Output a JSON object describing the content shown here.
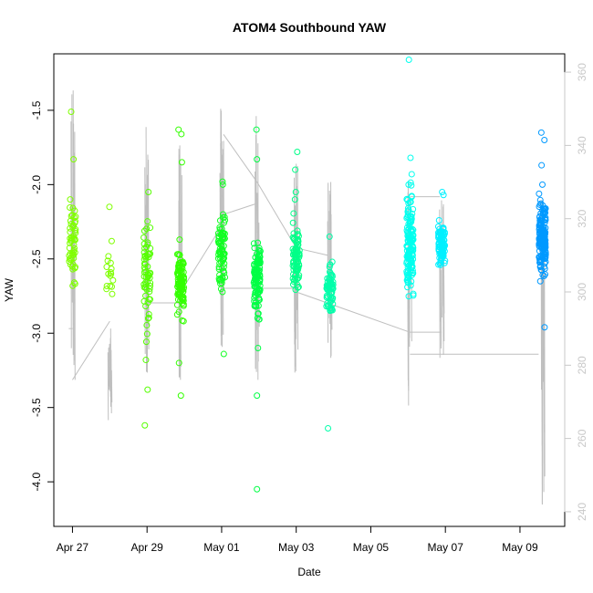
{
  "chart_data": {
    "type": "scatter",
    "title": "ATOM4 Southbound YAW",
    "xlabel": "Date",
    "ylabel": "YAW",
    "x_ticks": [
      "Apr 27",
      "Apr 29",
      "May 01",
      "May 03",
      "May 05",
      "May 07",
      "May 09"
    ],
    "y_ticks": [
      "-1.5",
      "-2.0",
      "-2.5",
      "-3.0",
      "-3.5",
      "-4.0"
    ],
    "y2_ticks": [
      "240",
      "260",
      "280",
      "300",
      "320",
      "340",
      "360"
    ],
    "xlim_days": [
      26.5,
      40.2
    ],
    "ylim": [
      -4.3,
      -1.12
    ],
    "y2lim": [
      236,
      365
    ],
    "grid": false,
    "series": [
      {
        "style": "points",
        "color_note": "green→cyan→blue gradient by date",
        "clusters": [
          {
            "day": 27.0,
            "color": "#7fff00",
            "center": -2.4,
            "spread": 0.18,
            "n": 55,
            "extra": [
              -1.51,
              -1.83,
              -2.1
            ]
          },
          {
            "day": 28.0,
            "color": "#7fff00",
            "center": -2.6,
            "spread": 0.1,
            "n": 15,
            "extra": [
              -2.15,
              -2.38
            ]
          },
          {
            "day": 29.0,
            "color": "#55ff00",
            "center": -2.6,
            "spread": 0.25,
            "n": 60,
            "extra": [
              -2.05,
              -3.38,
              -3.62,
              -3.18
            ]
          },
          {
            "day": 29.9,
            "color": "#33ff00",
            "center": -2.65,
            "spread": 0.15,
            "n": 110,
            "extra": [
              -1.63,
              -1.66,
              -1.85,
              -3.42,
              -3.2
            ]
          },
          {
            "day": 31.0,
            "color": "#11ff22",
            "center": -2.45,
            "spread": 0.18,
            "n": 80,
            "extra": [
              -1.98,
              -2.0,
              -3.14
            ]
          },
          {
            "day": 31.95,
            "color": "#00ff44",
            "center": -2.65,
            "spread": 0.18,
            "n": 110,
            "extra": [
              -1.63,
              -1.83,
              -3.1,
              -3.42,
              -4.05
            ]
          },
          {
            "day": 33.0,
            "color": "#00ff88",
            "center": -2.5,
            "spread": 0.15,
            "n": 80,
            "extra": [
              -1.78,
              -1.9,
              -2.05,
              -2.1
            ]
          },
          {
            "day": 33.9,
            "color": "#00ffaa",
            "center": -2.7,
            "spread": 0.12,
            "n": 70,
            "extra": [
              -2.35,
              -3.64
            ]
          },
          {
            "day": 36.05,
            "color": "#00ffee",
            "center": -2.4,
            "spread": 0.2,
            "n": 150,
            "extra": [
              -1.16,
              -1.82,
              -2.0,
              -1.93
            ]
          },
          {
            "day": 36.9,
            "color": "#00f0ff",
            "center": -2.4,
            "spread": 0.1,
            "n": 90,
            "extra": [
              -2.05,
              -2.07
            ]
          },
          {
            "day": 39.6,
            "color": "#0099ff",
            "center": -2.35,
            "spread": 0.18,
            "n": 170,
            "extra": [
              -1.65,
              -1.7,
              -1.87,
              -2.0,
              -2.65,
              -2.96
            ]
          }
        ]
      },
      {
        "style": "line",
        "axis": "right",
        "color": "#bfbfbf",
        "spikes": [
          {
            "day": 27.0,
            "low": 276,
            "high": 355
          },
          {
            "day": 28.0,
            "low": 265,
            "high": 290
          },
          {
            "day": 29.0,
            "low": 278,
            "high": 345
          },
          {
            "day": 29.9,
            "low": 276,
            "high": 340
          },
          {
            "day": 31.0,
            "low": 285,
            "high": 350
          },
          {
            "day": 31.95,
            "low": 276,
            "high": 348
          },
          {
            "day": 33.0,
            "low": 278,
            "high": 335
          },
          {
            "day": 33.9,
            "low": 282,
            "high": 330
          },
          {
            "day": 36.05,
            "low": 269,
            "high": 330
          },
          {
            "day": 36.9,
            "low": 282,
            "high": 325
          },
          {
            "day": 39.6,
            "low": 242,
            "high": 325
          }
        ],
        "connectors": [
          [
            26.9,
            290,
            27.0,
            290
          ],
          [
            27.0,
            276,
            28.0,
            292
          ],
          [
            29.0,
            297,
            29.9,
            297
          ],
          [
            29.9,
            300,
            31.0,
            318
          ],
          [
            31.0,
            321,
            31.9,
            324
          ],
          [
            31.05,
            343,
            31.95,
            330
          ],
          [
            31.95,
            330,
            33.0,
            312
          ],
          [
            33.0,
            312,
            33.85,
            310
          ],
          [
            31.0,
            301,
            33.0,
            301
          ],
          [
            33.0,
            300,
            36.05,
            289
          ],
          [
            36.05,
            326,
            36.85,
            326
          ],
          [
            36.9,
            289,
            36.05,
            289
          ],
          [
            36.05,
            283,
            39.5,
            283
          ],
          [
            39.6,
            325,
            39.6,
            242
          ]
        ]
      }
    ]
  }
}
